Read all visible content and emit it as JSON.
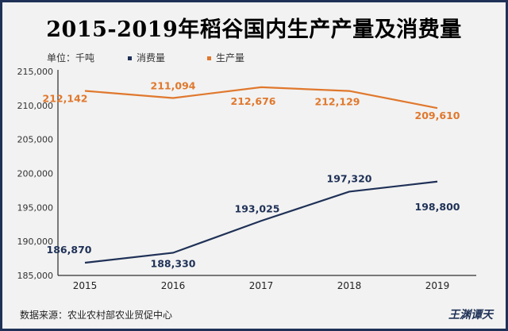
{
  "title": "2015-2019年稻谷国内生产产量及消费量",
  "unit_label": "单位：千吨",
  "source": "数据来源：农业农村部农业贸促中心",
  "watermark": "王渊谭天",
  "colors": {
    "consumption": "#1f3157",
    "production": "#e0782d",
    "frame": "#1f3157",
    "background": "#f2f2f2"
  },
  "chart_data": {
    "type": "line",
    "categories": [
      "2015",
      "2016",
      "2017",
      "2018",
      "2019"
    ],
    "ylim": [
      185000,
      215000
    ],
    "yticks": [
      "185,000",
      "190,000",
      "195,000",
      "200,000",
      "205,000",
      "210,000",
      "215,000"
    ],
    "series": [
      {
        "name": "消费量",
        "values": [
          186870,
          188330,
          193025,
          197320,
          198800
        ],
        "labels": [
          "186,870",
          "188,330",
          "193,025",
          "197,320",
          "198,800"
        ]
      },
      {
        "name": "生产量",
        "values": [
          212142,
          211094,
          212676,
          212129,
          209610
        ],
        "labels": [
          "212,142",
          "211,094",
          "212,676",
          "212,129",
          "209,610"
        ]
      }
    ],
    "grid": false,
    "legend": "top-left"
  }
}
